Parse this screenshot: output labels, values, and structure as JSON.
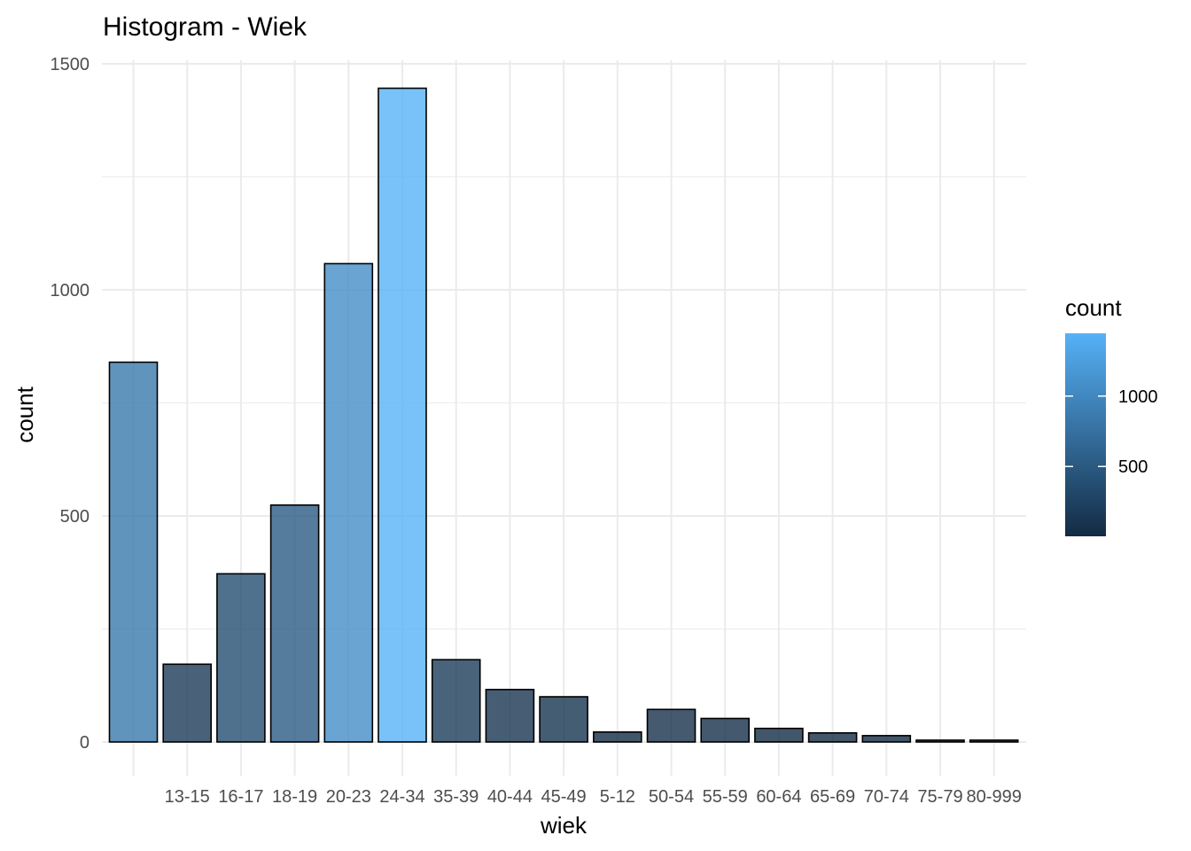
{
  "chart_data": {
    "type": "bar",
    "title": "Histogram - Wiek",
    "xlabel": "wiek",
    "ylabel": "count",
    "categories": [
      "",
      "13-15",
      "16-17",
      "18-19",
      "20-23",
      "24-34",
      "35-39",
      "40-44",
      "45-49",
      "5-12",
      "50-54",
      "55-59",
      "60-64",
      "65-69",
      "70-74",
      "75-79",
      "80-999"
    ],
    "values": [
      840,
      172,
      372,
      524,
      1058,
      1446,
      182,
      116,
      100,
      22,
      72,
      52,
      30,
      20,
      14,
      4,
      4
    ],
    "ylim": [
      0,
      1500
    ],
    "yticks": [
      0,
      500,
      1000,
      1500
    ],
    "grid": true,
    "fill_scale": {
      "low_color": "#132B43",
      "high_color": "#56B1F7",
      "min": 4,
      "max": 1446,
      "bar_opacity": 0.8
    },
    "legend": {
      "title": "count",
      "position": "right",
      "labels": [
        "500",
        "1000"
      ],
      "breaks": [
        500,
        1000
      ]
    }
  }
}
